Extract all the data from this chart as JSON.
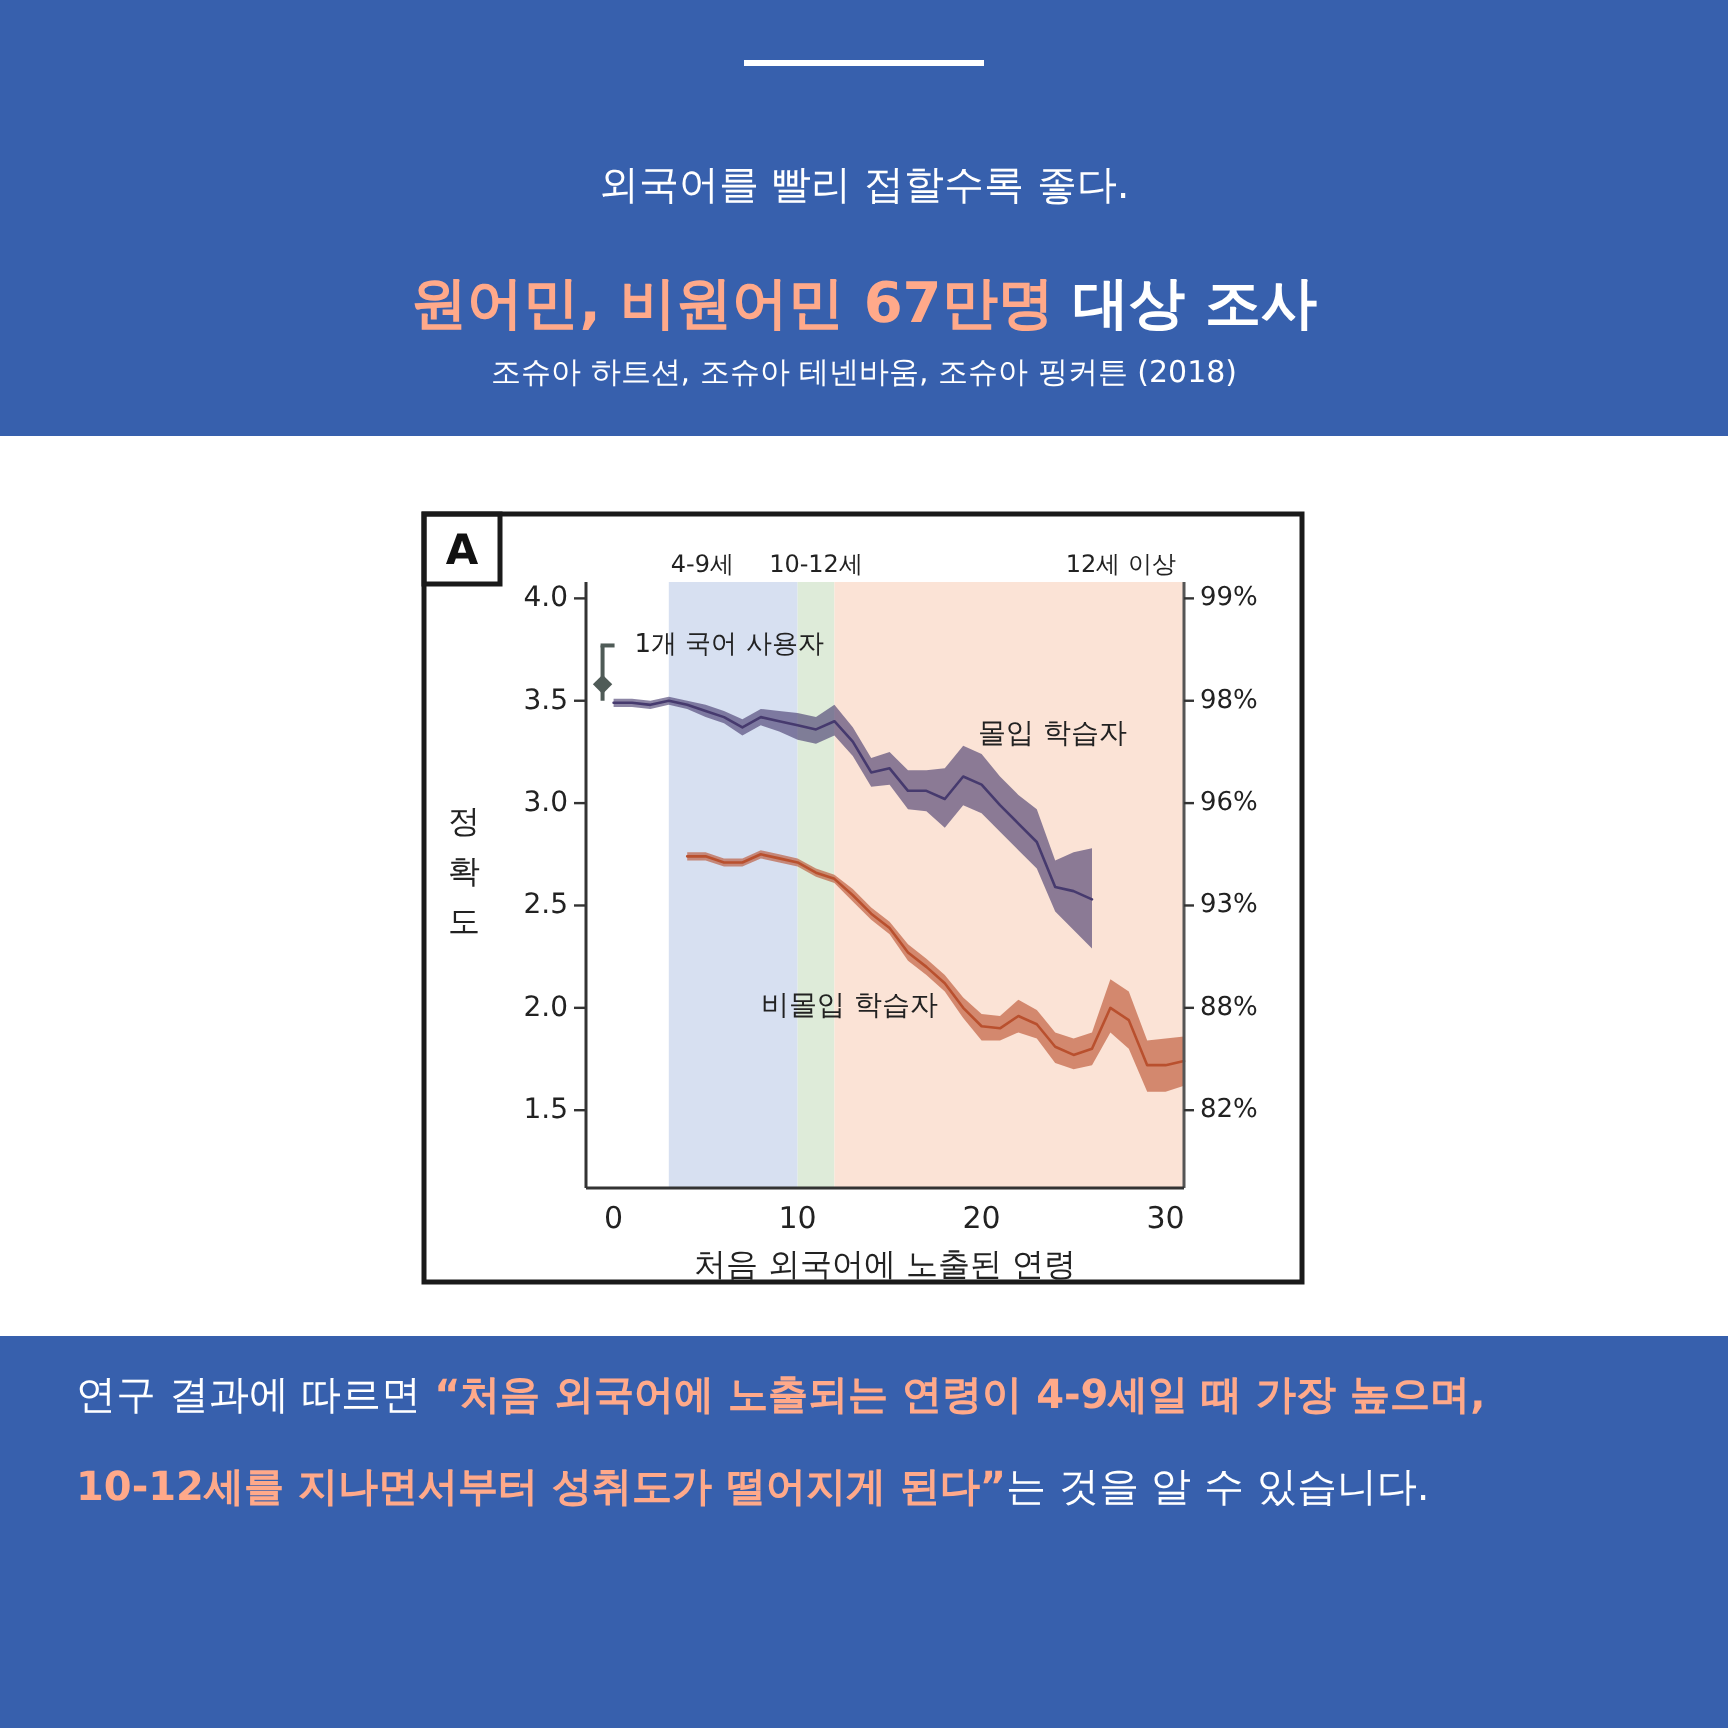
{
  "chart_data": {
    "type": "line",
    "title": "원어민, 비원어민 67만명 대상 조사",
    "subtitle": "조슈아 하트션, 조슈아 테넨바움, 조슈아 핑커튼 (2018)",
    "xlabel": "처음 외국어에 노출된 연령",
    "ylabel": "정확도",
    "annotations": [
      "외국어를 빨리 접할수록 좋다.",
      "A",
      "연구 결과에 따르면 “처음 외국어에 노출되는 연령이 4-9세일 때 가장 높으며, 10-12세를 지나면서부터 성취도가 떨어지게 된다”는 것을 알 수 있습니다."
    ],
    "xlim": [
      -1.5,
      31
    ],
    "xticks": [
      0,
      10,
      20,
      30
    ],
    "ylim": [
      1.12,
      4.08
    ],
    "yticks": [
      1.5,
      {
        "value": 2,
        "label": "2.0"
      },
      2.5,
      {
        "value": 3,
        "label": "3.0"
      },
      3.5,
      {
        "value": 4,
        "label": "4.0"
      }
    ],
    "y2_categories": [
      "99%",
      "98%",
      "96%",
      "93%",
      "88%",
      "82%"
    ],
    "bands": [
      {
        "axis": "x",
        "from": 3,
        "to": 10,
        "label": "4-9세",
        "color": "#d7e0f1"
      },
      {
        "axis": "x",
        "from": 10,
        "to": 12,
        "label": "10-12세",
        "color": "#deebd9"
      },
      {
        "axis": "x",
        "from": 12,
        "to": 31,
        "label": "12세 이상",
        "color": "#fbe3d6"
      }
    ],
    "series": [
      {
        "name": "1개 국어 사용자",
        "type": "scatter",
        "marker": "diamond",
        "color": "#4f5b57",
        "x": [
          -0.6
        ],
        "values": [
          3.58
        ],
        "errors": [
          [
            3.5,
            3.77
          ]
        ]
      },
      {
        "name": "몰입 학습자",
        "color": "#463a6e",
        "x": [
          0,
          1,
          2,
          3,
          4,
          5,
          6,
          7,
          8,
          9,
          10,
          11,
          12,
          13,
          14,
          15,
          16,
          17,
          18,
          19,
          20,
          21,
          22,
          23,
          24,
          25,
          26
        ],
        "values": [
          3.49,
          3.49,
          3.48,
          3.5,
          3.48,
          3.45,
          3.42,
          3.37,
          3.42,
          3.4,
          3.38,
          3.36,
          3.4,
          3.3,
          3.15,
          3.17,
          3.06,
          3.06,
          3.02,
          3.13,
          3.09,
          2.99,
          2.9,
          2.81,
          2.59,
          2.57,
          2.53
        ],
        "lower": [
          3.47,
          3.47,
          3.46,
          3.48,
          3.46,
          3.42,
          3.39,
          3.33,
          3.38,
          3.35,
          3.31,
          3.29,
          3.33,
          3.23,
          3.08,
          3.09,
          2.97,
          2.96,
          2.88,
          2.99,
          2.95,
          2.86,
          2.77,
          2.68,
          2.47,
          2.38,
          2.29
        ],
        "upper": [
          3.51,
          3.51,
          3.5,
          3.52,
          3.5,
          3.48,
          3.45,
          3.41,
          3.46,
          3.45,
          3.44,
          3.42,
          3.48,
          3.37,
          3.22,
          3.25,
          3.16,
          3.16,
          3.17,
          3.28,
          3.24,
          3.13,
          3.04,
          2.97,
          2.72,
          2.76,
          2.78
        ]
      },
      {
        "name": "비몰입 학습자",
        "color": "#b9502e",
        "x": [
          4,
          5,
          6,
          7,
          8,
          9,
          10,
          11,
          12,
          13,
          14,
          15,
          16,
          17,
          18,
          19,
          20,
          21,
          22,
          23,
          24,
          25,
          26,
          27,
          28,
          29,
          30,
          31
        ],
        "values": [
          2.74,
          2.74,
          2.71,
          2.71,
          2.75,
          2.73,
          2.71,
          2.66,
          2.63,
          2.55,
          2.46,
          2.39,
          2.27,
          2.2,
          2.12,
          2.0,
          1.91,
          1.9,
          1.96,
          1.92,
          1.81,
          1.77,
          1.8,
          2.0,
          1.94,
          1.72,
          1.72,
          1.74
        ],
        "lower": [
          2.72,
          2.72,
          2.69,
          2.69,
          2.73,
          2.71,
          2.69,
          2.64,
          2.61,
          2.52,
          2.43,
          2.36,
          2.23,
          2.16,
          2.08,
          1.95,
          1.84,
          1.84,
          1.88,
          1.85,
          1.73,
          1.7,
          1.72,
          1.88,
          1.8,
          1.59,
          1.59,
          1.62
        ],
        "upper": [
          2.76,
          2.76,
          2.73,
          2.73,
          2.77,
          2.75,
          2.73,
          2.68,
          2.65,
          2.58,
          2.49,
          2.42,
          2.31,
          2.24,
          2.16,
          2.05,
          1.97,
          1.96,
          2.04,
          1.99,
          1.88,
          1.85,
          1.88,
          2.14,
          2.08,
          1.84,
          1.85,
          1.86
        ]
      }
    ]
  }
}
